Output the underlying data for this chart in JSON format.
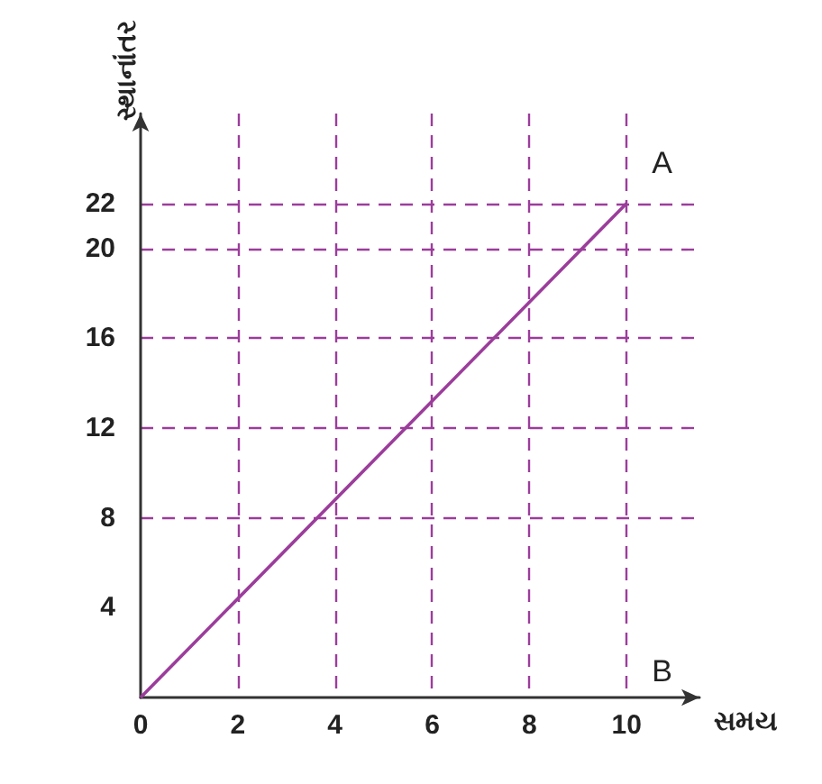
{
  "chart_data": {
    "type": "line",
    "xlabel": "સમય",
    "ylabel": "સ્થાનાંતર",
    "x": [
      0,
      10
    ],
    "series": [
      {
        "color": "#9b3d9b",
        "values": [
          0,
          22
        ]
      }
    ],
    "xlim": [
      0,
      11.5
    ],
    "ylim": [
      0,
      26
    ],
    "xticks": [
      0,
      2,
      4,
      6,
      8,
      10
    ],
    "yticks": [
      4,
      8,
      12,
      16,
      20,
      22
    ],
    "grid": true,
    "marker": "none",
    "line_style": "solid",
    "annotations": [
      {
        "text": "A",
        "x": 10,
        "y": 22
      },
      "B"
    ]
  }
}
